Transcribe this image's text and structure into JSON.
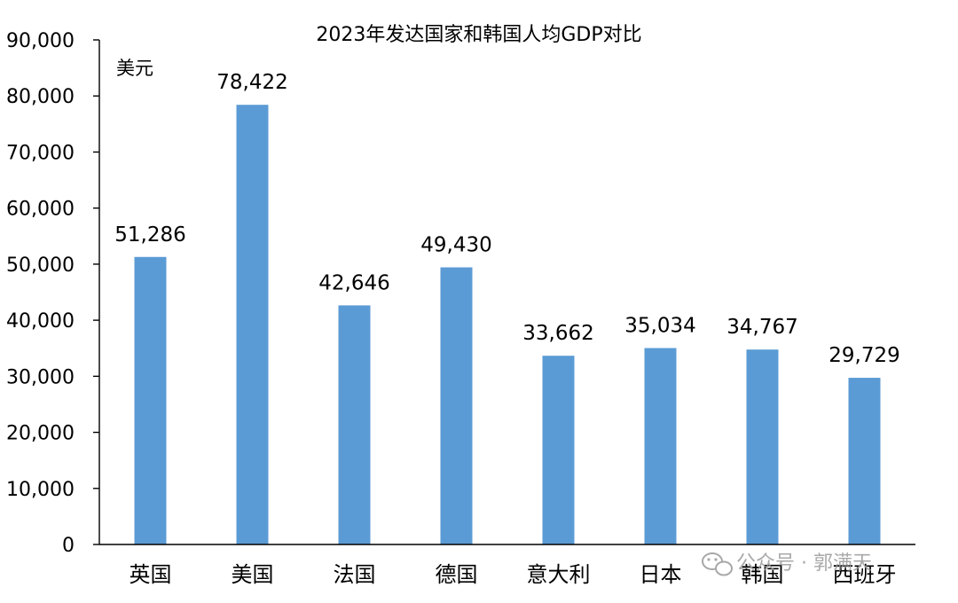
{
  "chart_data": {
    "type": "bar",
    "title": "2023年发达国家和韩国人均GDP对比",
    "unit_label": "美元",
    "categories": [
      "英国",
      "美国",
      "法国",
      "德国",
      "意大利",
      "日本",
      "韩国",
      "西班牙"
    ],
    "values": [
      51286,
      78422,
      42646,
      49430,
      33662,
      35034,
      34767,
      29729
    ],
    "data_labels": [
      "51,286",
      "78,422",
      "42,646",
      "49,430",
      "33,662",
      "35,034",
      "34,767",
      "29,729"
    ],
    "ylim": [
      0,
      90000
    ],
    "yticks": [
      0,
      10000,
      20000,
      30000,
      40000,
      50000,
      60000,
      70000,
      80000,
      90000
    ],
    "ytick_labels": [
      "0",
      "10,000",
      "20,000",
      "30,000",
      "40,000",
      "50,000",
      "60,000",
      "70,000",
      "80,000",
      "90,000"
    ],
    "xlabel": "",
    "ylabel": "",
    "grid": false,
    "legend": "none",
    "bar_color": "#5b9bd5"
  },
  "watermark": {
    "text": "公众号 · 郭满天",
    "icon": "wechat-icon"
  }
}
